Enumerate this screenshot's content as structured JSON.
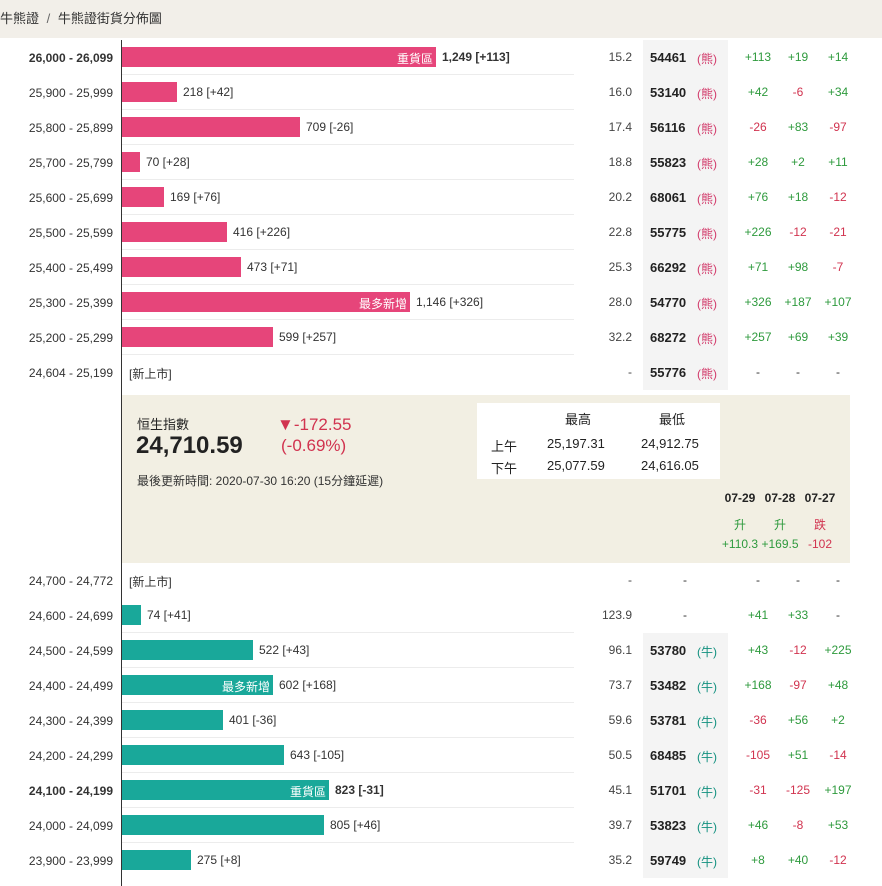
{
  "breadcrumb": {
    "item1": "牛熊證",
    "separator": "/",
    "item2": "牛熊證街貨分佈圖"
  },
  "colors": {
    "bear": "#e6457a",
    "bull": "#19a89a",
    "positive": "#2e9a3d",
    "negative": "#d1334f",
    "panel": "#f2efe3"
  },
  "chart_data": {
    "type": "bar",
    "orientation": "horizontal",
    "bear_rows": [
      {
        "range": "26,000 - 26,099",
        "value": 1249,
        "change": "[+113]",
        "inner_label": "重貨區",
        "bold": true,
        "ratio": "15.2",
        "code": "54461",
        "tag": "(熊)",
        "d1": "+113",
        "d2": "+19",
        "d3": "+14"
      },
      {
        "range": "25,900 - 25,999",
        "value": 218,
        "change": "[+42]",
        "inner_label": "",
        "bold": false,
        "ratio": "16.0",
        "code": "53140",
        "tag": "(熊)",
        "d1": "+42",
        "d2": "-6",
        "d3": "+34"
      },
      {
        "range": "25,800 - 25,899",
        "value": 709,
        "change": "[-26]",
        "inner_label": "",
        "bold": false,
        "ratio": "17.4",
        "code": "56116",
        "tag": "(熊)",
        "d1": "-26",
        "d2": "+83",
        "d3": "-97"
      },
      {
        "range": "25,700 - 25,799",
        "value": 70,
        "change": "[+28]",
        "inner_label": "",
        "bold": false,
        "ratio": "18.8",
        "code": "55823",
        "tag": "(熊)",
        "d1": "+28",
        "d2": "+2",
        "d3": "+11"
      },
      {
        "range": "25,600 - 25,699",
        "value": 169,
        "change": "[+76]",
        "inner_label": "",
        "bold": false,
        "ratio": "20.2",
        "code": "68061",
        "tag": "(熊)",
        "d1": "+76",
        "d2": "+18",
        "d3": "-12"
      },
      {
        "range": "25,500 - 25,599",
        "value": 416,
        "change": "[+226]",
        "inner_label": "",
        "bold": false,
        "ratio": "22.8",
        "code": "55775",
        "tag": "(熊)",
        "d1": "+226",
        "d2": "-12",
        "d3": "-21"
      },
      {
        "range": "25,400 - 25,499",
        "value": 473,
        "change": "[+71]",
        "inner_label": "",
        "bold": false,
        "ratio": "25.3",
        "code": "66292",
        "tag": "(熊)",
        "d1": "+71",
        "d2": "+98",
        "d3": "-7"
      },
      {
        "range": "25,300 - 25,399",
        "value": 1146,
        "change": "[+326]",
        "inner_label": "最多新增",
        "bold": false,
        "ratio": "28.0",
        "code": "54770",
        "tag": "(熊)",
        "d1": "+326",
        "d2": "+187",
        "d3": "+107"
      },
      {
        "range": "25,200 - 25,299",
        "value": 599,
        "change": "[+257]",
        "inner_label": "",
        "bold": false,
        "ratio": "32.2",
        "code": "68272",
        "tag": "(熊)",
        "d1": "+257",
        "d2": "+69",
        "d3": "+39"
      },
      {
        "range": "24,604 - 25,199",
        "value": null,
        "new_label": "[新上市]",
        "ratio": "-",
        "code": "55776",
        "tag": "(熊)",
        "d1": "-",
        "d2": "-",
        "d3": "-"
      }
    ],
    "bull_rows": [
      {
        "range": "24,700 - 24,772",
        "value": null,
        "new_label": "[新上市]",
        "ratio": "-",
        "code": "-",
        "tag": "",
        "d1": "-",
        "d2": "-",
        "d3": "-"
      },
      {
        "range": "24,600 - 24,699",
        "value": 74,
        "change": "[+41]",
        "inner_label": "",
        "bold": false,
        "ratio": "123.9",
        "code": "-",
        "tag": "",
        "d1": "+41",
        "d2": "+33",
        "d3": "-"
      },
      {
        "range": "24,500 - 24,599",
        "value": 522,
        "change": "[+43]",
        "inner_label": "",
        "bold": false,
        "ratio": "96.1",
        "code": "53780",
        "tag": "(牛)",
        "d1": "+43",
        "d2": "-12",
        "d3": "+225"
      },
      {
        "range": "24,400 - 24,499",
        "value": 602,
        "change": "[+168]",
        "inner_label": "最多新增",
        "bold": false,
        "ratio": "73.7",
        "code": "53482",
        "tag": "(牛)",
        "d1": "+168",
        "d2": "-97",
        "d3": "+48"
      },
      {
        "range": "24,300 - 24,399",
        "value": 401,
        "change": "[-36]",
        "inner_label": "",
        "bold": false,
        "ratio": "59.6",
        "code": "53781",
        "tag": "(牛)",
        "d1": "-36",
        "d2": "+56",
        "d3": "+2"
      },
      {
        "range": "24,200 - 24,299",
        "value": 643,
        "change": "[-105]",
        "inner_label": "",
        "bold": false,
        "ratio": "50.5",
        "code": "68485",
        "tag": "(牛)",
        "d1": "-105",
        "d2": "+51",
        "d3": "-14"
      },
      {
        "range": "24,100 - 24,199",
        "value": 823,
        "change": "[-31]",
        "inner_label": "重貨區",
        "bold": true,
        "ratio": "45.1",
        "code": "51701",
        "tag": "(牛)",
        "d1": "-31",
        "d2": "-125",
        "d3": "+197"
      },
      {
        "range": "24,000 - 24,099",
        "value": 805,
        "change": "[+46]",
        "inner_label": "",
        "bold": false,
        "ratio": "39.7",
        "code": "53823",
        "tag": "(牛)",
        "d1": "+46",
        "d2": "-8",
        "d3": "+53"
      },
      {
        "range": "23,900 - 23,999",
        "value": 275,
        "change": "[+8]",
        "inner_label": "",
        "bold": false,
        "ratio": "35.2",
        "code": "59749",
        "tag": "(牛)",
        "d1": "+8",
        "d2": "+40",
        "d3": "-12"
      }
    ],
    "xlim": [
      0,
      1249
    ]
  },
  "index_panel": {
    "name": "恒生指數",
    "value": "24,710.59",
    "change": "▼-172.55",
    "change_pct": "(-0.69%)",
    "updated": "最後更新時間: 2020-07-30 16:20 (15分鐘延遲)",
    "hl_header_high": "最高",
    "hl_header_low": "最低",
    "am_label": "上午",
    "am_high": "25,197.31",
    "am_low": "24,912.75",
    "pm_label": "下午",
    "pm_high": "25,077.59",
    "pm_low": "24,616.05",
    "dates": [
      {
        "date": "07-29",
        "dir": "升",
        "val": "+110.3",
        "sign": "pos"
      },
      {
        "date": "07-28",
        "dir": "升",
        "val": "+169.5",
        "sign": "pos"
      },
      {
        "date": "07-27",
        "dir": "跌",
        "val": "-102",
        "sign": "neg"
      }
    ]
  }
}
